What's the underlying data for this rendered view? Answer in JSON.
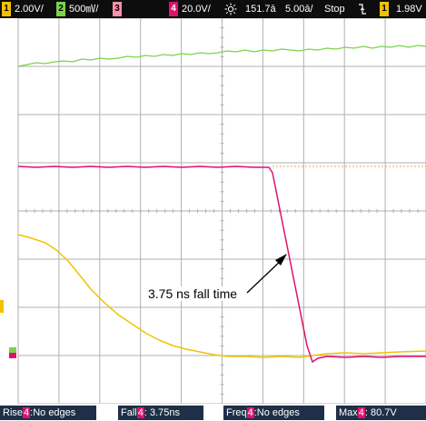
{
  "status_bar": {
    "ch1": {
      "number": "1",
      "scale": "2.00V/"
    },
    "ch2": {
      "number": "2",
      "scale": "500㎷/"
    },
    "ch3": {
      "number": "3"
    },
    "ch4": {
      "number": "4",
      "scale": "20.0V/"
    },
    "trigger_icon": "sun-icon",
    "timebase_offset": "151.7ā",
    "timebase_scale": "5.00ā/",
    "run_state": "Stop",
    "edge_icon": "falling-edge-icon",
    "trigger_source": {
      "number": "1",
      "level": "1.98V"
    }
  },
  "annotation": {
    "label": "3.75 ns fall time"
  },
  "measurements": [
    {
      "name": "Rise",
      "source": "4",
      "value": ":No edges"
    },
    {
      "name": "Fall",
      "source": "4",
      "value": ": 3.75ns"
    },
    {
      "name": "Freq",
      "source": "4",
      "value": ":No edges"
    },
    {
      "name": "Max",
      "source": "4",
      "value": ": 80.7V"
    }
  ],
  "colors": {
    "ch1": "#f2c200",
    "ch2": "#7bd34a",
    "ch4": "#e0106f",
    "grid": "#b0b0b0",
    "measure_bg": "#1f2f48"
  }
}
